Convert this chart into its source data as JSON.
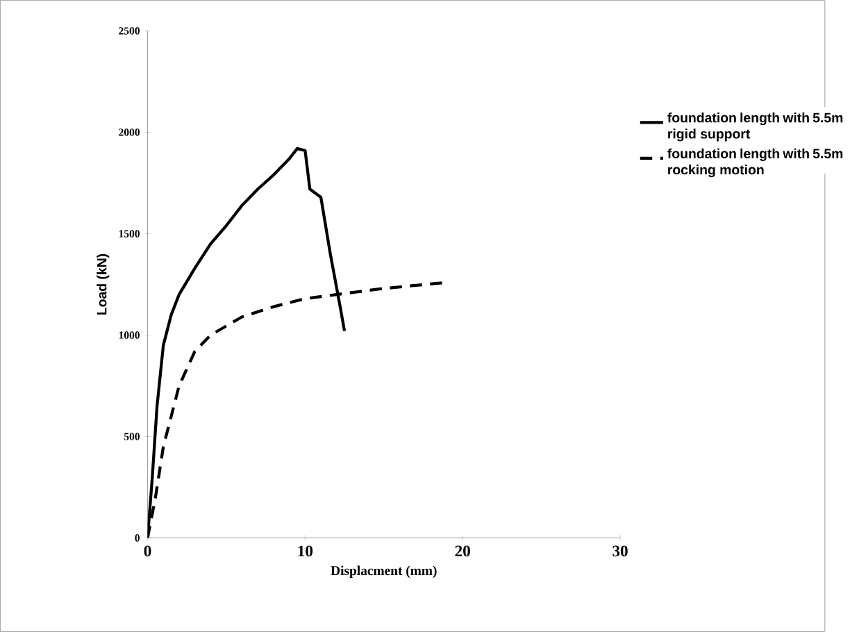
{
  "chart_data": {
    "type": "line",
    "xlabel": "Displacment (mm)",
    "ylabel": "Load (kN)",
    "xlim": [
      0,
      30
    ],
    "ylim": [
      0,
      2500
    ],
    "xticks": [
      0,
      10,
      20,
      30
    ],
    "yticks": [
      0,
      500,
      1000,
      1500,
      2000,
      2500
    ],
    "grid": false,
    "legend": "right",
    "marker": "none",
    "series": [
      {
        "name": "foundation length with 5.5m rigid support",
        "color": "#000000",
        "line_style": "solid",
        "x": [
          0,
          0.3,
          0.6,
          1,
          1.5,
          2,
          3,
          4,
          5,
          6,
          7,
          8,
          9,
          9.5,
          10,
          10.3,
          11,
          11.6,
          12.2,
          12.5
        ],
        "values": [
          0,
          300,
          650,
          950,
          1100,
          1200,
          1330,
          1450,
          1540,
          1640,
          1720,
          1790,
          1870,
          1920,
          1910,
          1720,
          1680,
          1400,
          1150,
          1020
        ]
      },
      {
        "name": "foundation length with 5.5m rocking motion",
        "color": "#000000",
        "line_style": "dashed",
        "x": [
          0,
          0.5,
          1,
          2,
          3,
          4,
          6,
          8,
          10,
          12,
          15,
          19
        ],
        "values": [
          0,
          200,
          450,
          750,
          920,
          1000,
          1090,
          1140,
          1180,
          1200,
          1230,
          1260
        ]
      }
    ]
  }
}
